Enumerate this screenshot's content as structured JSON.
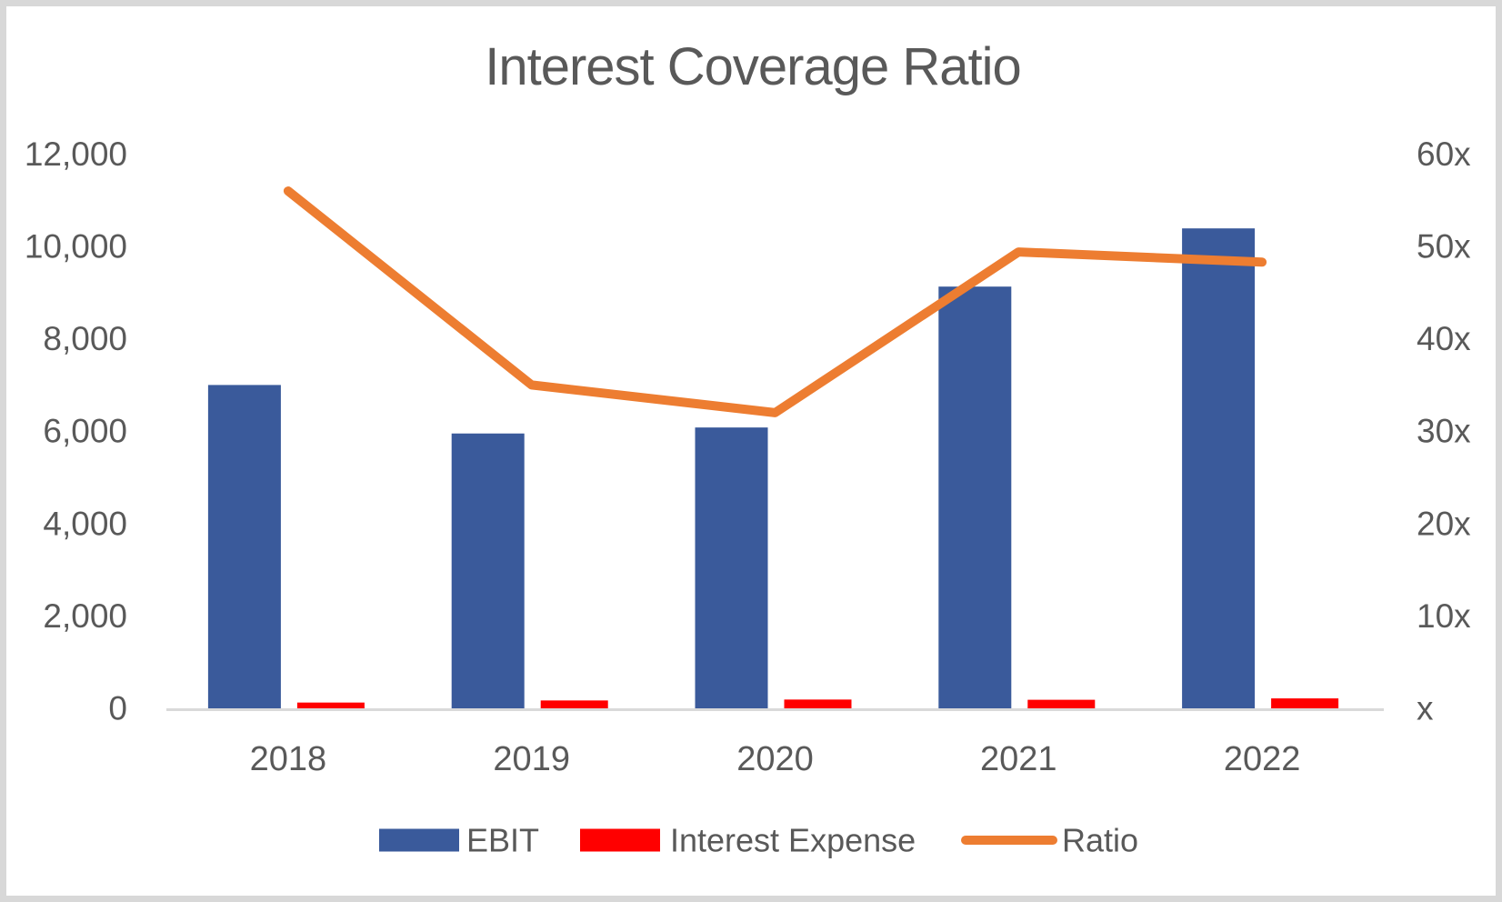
{
  "window": {
    "background": "#ffffff",
    "frame_color": "#d8d8d8"
  },
  "chart_data": {
    "type": "combo-bar-line",
    "title": "Interest Coverage Ratio",
    "title_color": "#595959",
    "text_color": "#595959",
    "axis_line_color": "#d9d9d9",
    "grid": false,
    "legend_position": "bottom",
    "categories": [
      "2018",
      "2019",
      "2020",
      "2021",
      "2022"
    ],
    "series": [
      {
        "name": "EBIT",
        "type": "bar",
        "axis": "left",
        "color": "#3a5a9b",
        "values": [
          7000,
          5950,
          6080,
          9130,
          10390
        ]
      },
      {
        "name": "Interest Expense",
        "type": "bar",
        "axis": "left",
        "color": "#ff0000",
        "values": [
          125,
          170,
          190,
          185,
          215
        ]
      },
      {
        "name": "Ratio",
        "type": "line",
        "axis": "right",
        "color": "#ed7d31",
        "values": [
          56.0,
          35.0,
          32.0,
          49.4,
          48.3
        ]
      }
    ],
    "left_axis": {
      "min": 0,
      "max": 12000,
      "step": 2000,
      "tick_labels": [
        "0",
        "2,000",
        "4,000",
        "6,000",
        "8,000",
        "10,000",
        "12,000"
      ]
    },
    "right_axis": {
      "min": 0,
      "max": 60,
      "step": 10,
      "tick_labels": [
        "x",
        "10x",
        "20x",
        "30x",
        "40x",
        "50x",
        "60x"
      ]
    },
    "legend": {
      "items": [
        "EBIT",
        "Interest Expense",
        "Ratio"
      ]
    }
  }
}
